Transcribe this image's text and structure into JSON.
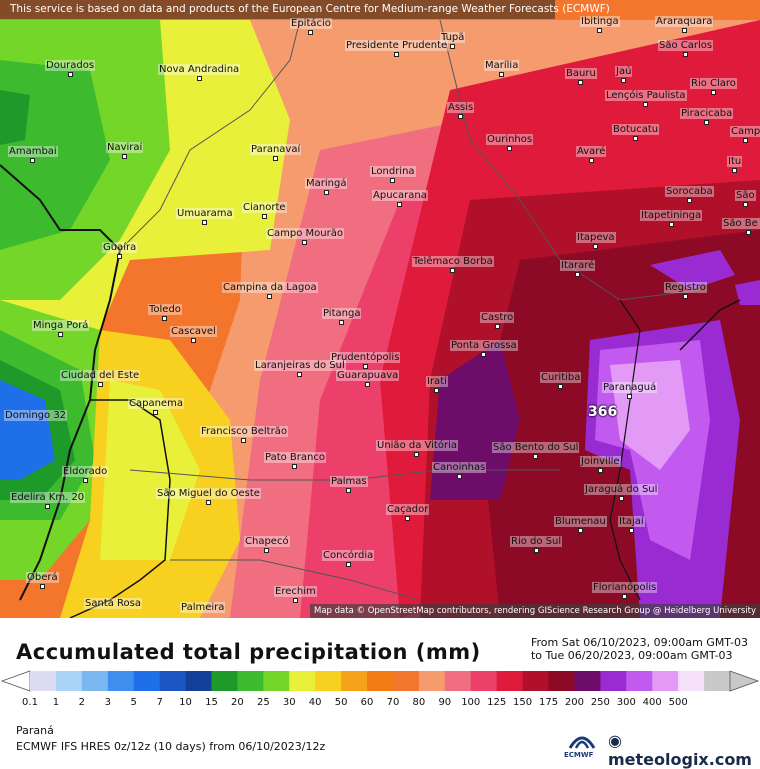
{
  "map": {
    "notice": "This service is based on data and products of the European Centre for Medium-range Weather Forecasts (ECMWF)",
    "attribution": "Map data © OpenStreetMap contributors, rendering GIScience Research Group @ Heidelberg University",
    "max_value": "366",
    "cities": [
      "Epitácio",
      "Presidente Prudente",
      "Tupã",
      "Ibitinga",
      "Araraquara",
      "Dourados",
      "Nova Andradina",
      "Marília",
      "São Carlos",
      "Bauru",
      "Jaú",
      "Rio Claro",
      "Lençóis Paulista",
      "Assis",
      "Piracicaba",
      "Camp",
      "Amambai",
      "Naviraí",
      "Paranavaí",
      "Ourinhos",
      "Avaré",
      "Botucatu",
      "Itu",
      "Londrina",
      "Maringá",
      "Apucarana",
      "Sorocaba",
      "São",
      "Umuarama",
      "Cianorte",
      "Itapetininga",
      "São Be do",
      "Campo Mourão",
      "Guaíra",
      "Itapeva",
      "Telêmaco Borba",
      "Itararé",
      "Campina da Lagoa",
      "Registro",
      "Toledo",
      "Pitanga",
      "Castro",
      "Minga Porá",
      "Cascavel",
      "Ponta Grossa",
      "Prudentópolis",
      "Laranjeiras do Sul",
      "Guarapuava",
      "Ciudad del Este",
      "Irati",
      "Curitiba",
      "Paranaguá",
      "Capanema",
      "Domingo 32",
      "Francisco Beltrão",
      "União da Vitória",
      "São Bento do Sul",
      "Pato Branco",
      "Canoinhas",
      "Joinville",
      "Eldorado",
      "Palmas",
      "Jaraguá do Sul",
      "Edelira Km. 20",
      "São Miguel do Oeste",
      "Caçador",
      "Blumenau",
      "Itajaí",
      "Chapecó",
      "Rio do Sul",
      "Concórdia",
      "Oberá",
      "Erechim",
      "Florianópolis",
      "Santa Rosa",
      "Palmeira"
    ]
  },
  "legend": {
    "title": "Accumulated total precipitation (mm)",
    "from": "From Sat 06/10/2023, 09:00am GMT-03",
    "to": "to Tue 06/20/2023, 09:00am GMT-03",
    "ticks": [
      "0.1",
      "1",
      "2",
      "3",
      "5",
      "7",
      "10",
      "15",
      "20",
      "25",
      "30",
      "40",
      "50",
      "60",
      "70",
      "80",
      "90",
      "100",
      "125",
      "150",
      "175",
      "200",
      "250",
      "300",
      "400",
      "500"
    ],
    "colors": [
      "#dcdcf2",
      "#a9d3f7",
      "#7bb8f2",
      "#3e8ff0",
      "#1f6fe8",
      "#1b56c4",
      "#15409a",
      "#1e9a2a",
      "#3dba2e",
      "#74d629",
      "#e8f03a",
      "#f7d020",
      "#f6a31a",
      "#f47a14",
      "#f4762c",
      "#f59b6e",
      "#f06e80",
      "#ec3f6a",
      "#e01a3a",
      "#b0102a",
      "#8d0a26",
      "#6e0c6a",
      "#9a2ad2",
      "#c25af0",
      "#e39af7",
      "#f5e0fa",
      "#c8c8c8"
    ]
  },
  "footer": {
    "region": "Paraná",
    "model": "ECMWF IFS HRES 0z/12z (10 days) from 06/10/2023/12z",
    "ecmwf": "ECMWF",
    "brand": "meteologix.com"
  }
}
